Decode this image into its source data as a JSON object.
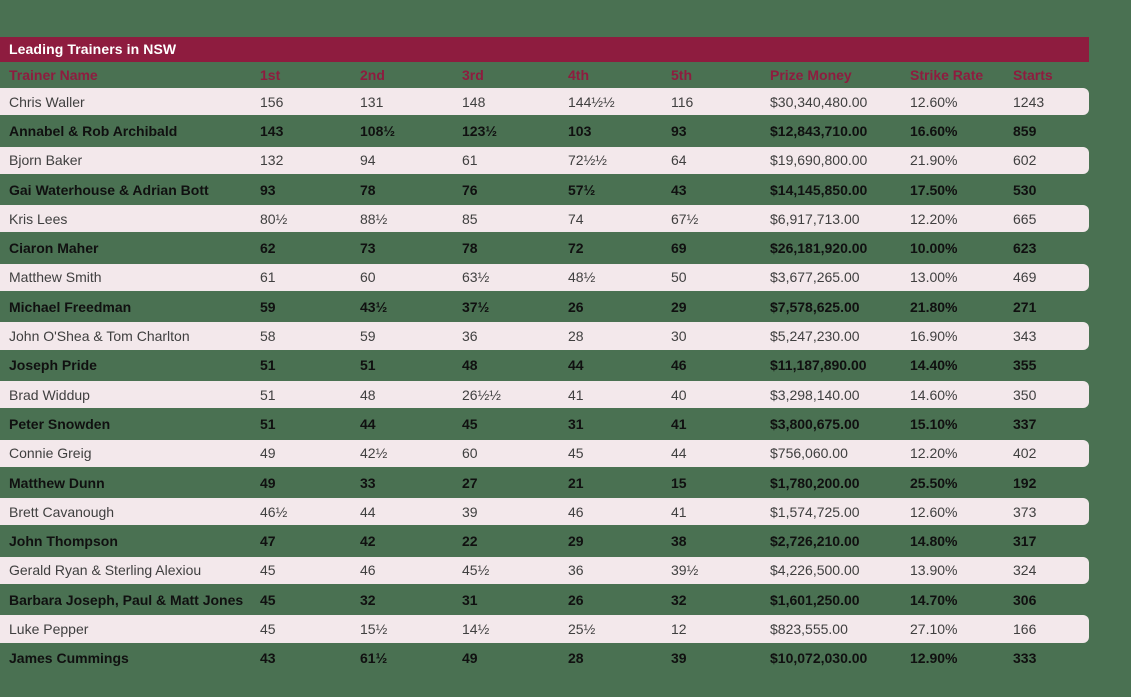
{
  "title_bar": {
    "label": "Leading Trainers in NSW"
  },
  "colors": {
    "background_green": "#4A7152",
    "maroon": "#8E1C3F",
    "row_pink": "#F3E8EB",
    "title_text": "#FFFFFF",
    "pink_row_text": "#3F3F3F",
    "green_row_text": "#101010"
  },
  "chart_data": {
    "type": "table",
    "title": "Leading Trainers in NSW",
    "columns": [
      "Trainer Name",
      "1st",
      "2nd",
      "3rd",
      "4th",
      "5th",
      "Prize Money",
      "Strike Rate",
      "Starts"
    ],
    "rows": [
      [
        "Chris Waller",
        "156",
        "131",
        "148",
        "144½½",
        "116",
        "$30,340,480.00",
        "12.60%",
        "1243"
      ],
      [
        "Annabel & Rob Archibald",
        "143",
        "108½",
        "123½",
        "103",
        "93",
        "$12,843,710.00",
        "16.60%",
        "859"
      ],
      [
        "Bjorn Baker",
        "132",
        "94",
        "61",
        "72½½",
        "64",
        "$19,690,800.00",
        "21.90%",
        "602"
      ],
      [
        "Gai Waterhouse & Adrian Bott",
        "93",
        "78",
        "76",
        "57½",
        "43",
        "$14,145,850.00",
        "17.50%",
        "530"
      ],
      [
        "Kris Lees",
        "80½",
        "88½",
        "85",
        "74",
        "67½",
        "$6,917,713.00",
        "12.20%",
        "665"
      ],
      [
        "Ciaron Maher",
        "62",
        "73",
        "78",
        "72",
        "69",
        "$26,181,920.00",
        "10.00%",
        "623"
      ],
      [
        "Matthew Smith",
        "61",
        "60",
        "63½",
        "48½",
        "50",
        "$3,677,265.00",
        "13.00%",
        "469"
      ],
      [
        "Michael Freedman",
        "59",
        "43½",
        "37½",
        "26",
        "29",
        "$7,578,625.00",
        "21.80%",
        "271"
      ],
      [
        "John O'Shea & Tom Charlton",
        "58",
        "59",
        "36",
        "28",
        "30",
        "$5,247,230.00",
        "16.90%",
        "343"
      ],
      [
        "Joseph Pride",
        "51",
        "51",
        "48",
        "44",
        "46",
        "$11,187,890.00",
        "14.40%",
        "355"
      ],
      [
        "Brad Widdup",
        "51",
        "48",
        "26½½",
        "41",
        "40",
        "$3,298,140.00",
        "14.60%",
        "350"
      ],
      [
        "Peter Snowden",
        "51",
        "44",
        "45",
        "31",
        "41",
        "$3,800,675.00",
        "15.10%",
        "337"
      ],
      [
        "Connie Greig",
        "49",
        "42½",
        "60",
        "45",
        "44",
        "$756,060.00",
        "12.20%",
        "402"
      ],
      [
        "Matthew Dunn",
        "49",
        "33",
        "27",
        "21",
        "15",
        "$1,780,200.00",
        "25.50%",
        "192"
      ],
      [
        "Brett Cavanough",
        "46½",
        "44",
        "39",
        "46",
        "41",
        "$1,574,725.00",
        "12.60%",
        "373"
      ],
      [
        "John Thompson",
        "47",
        "42",
        "22",
        "29",
        "38",
        "$2,726,210.00",
        "14.80%",
        "317"
      ],
      [
        "Gerald Ryan & Sterling Alexiou",
        "45",
        "46",
        "45½",
        "36",
        "39½",
        "$4,226,500.00",
        "13.90%",
        "324"
      ],
      [
        "Barbara Joseph, Paul & Matt Jones",
        "45",
        "32",
        "31",
        "26",
        "32",
        "$1,601,250.00",
        "14.70%",
        "306"
      ],
      [
        "Luke Pepper",
        "45",
        "15½",
        "14½",
        "25½",
        "12",
        "$823,555.00",
        "27.10%",
        "166"
      ],
      [
        "James Cummings",
        "43",
        "61½",
        "49",
        "28",
        "39",
        "$10,072,030.00",
        "12.90%",
        "333"
      ]
    ]
  }
}
